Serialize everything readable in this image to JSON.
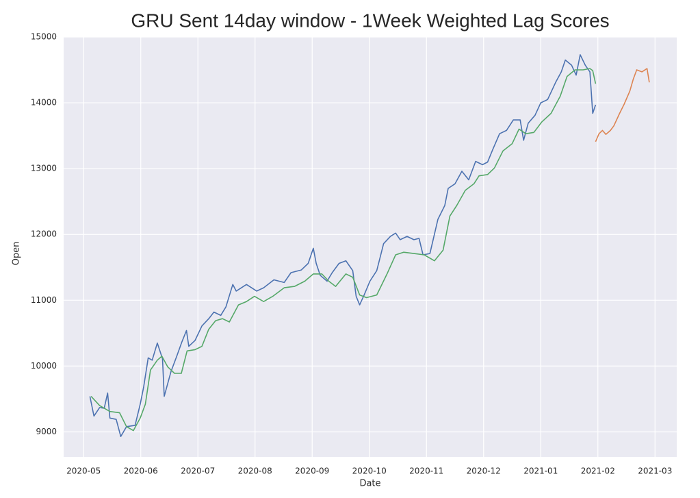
{
  "chart_data": {
    "type": "line",
    "title": "GRU Sent 14day window - 1Week Weighted Lag Scores",
    "x_label": "Date",
    "y_label": "Open",
    "xlim": [
      -0.35,
      10.38
    ],
    "xticks": [
      {
        "value": 0,
        "label": "2020-05"
      },
      {
        "value": 1,
        "label": "2020-06"
      },
      {
        "value": 2,
        "label": "2020-07"
      },
      {
        "value": 3,
        "label": "2020-08"
      },
      {
        "value": 4,
        "label": "2020-09"
      },
      {
        "value": 5,
        "label": "2020-10"
      },
      {
        "value": 6,
        "label": "2020-11"
      },
      {
        "value": 7,
        "label": "2020-12"
      },
      {
        "value": 8,
        "label": "2021-01"
      },
      {
        "value": 9,
        "label": "2021-02"
      },
      {
        "value": 10,
        "label": "2021-03"
      }
    ],
    "ylim": [
      8620,
      15000
    ],
    "yticks": [
      9000,
      10000,
      11000,
      12000,
      13000,
      14000,
      15000
    ],
    "grid": true,
    "series": [
      {
        "color": "#4c72b0",
        "x": [
          0.11,
          0.18,
          0.28,
          0.36,
          0.42,
          0.46,
          0.57,
          0.65,
          0.75,
          0.9,
          0.99,
          1.05,
          1.13,
          1.2,
          1.29,
          1.38,
          1.41,
          1.53,
          1.63,
          1.72,
          1.8,
          1.84,
          1.95,
          2.07,
          2.19,
          2.28,
          2.4,
          2.49,
          2.61,
          2.67,
          2.85,
          3.03,
          3.15,
          3.33,
          3.51,
          3.63,
          3.81,
          3.93,
          4.02,
          4.07,
          4.14,
          4.26,
          4.35,
          4.47,
          4.59,
          4.71,
          4.77,
          4.83,
          4.91,
          5.01,
          5.13,
          5.25,
          5.37,
          5.46,
          5.54,
          5.66,
          5.78,
          5.87,
          5.94,
          6.06,
          6.2,
          6.32,
          6.38,
          6.5,
          6.62,
          6.74,
          6.86,
          6.98,
          7.07,
          7.16,
          7.28,
          7.4,
          7.52,
          7.64,
          7.7,
          7.78,
          7.9,
          8.0,
          8.12,
          8.18,
          8.26,
          8.36,
          8.43,
          8.54,
          8.62,
          8.69,
          8.78,
          8.86,
          8.91,
          8.96
        ],
        "values": [
          9540,
          9240,
          9370,
          9360,
          9590,
          9210,
          9190,
          8930,
          9080,
          9100,
          9420,
          9680,
          10125,
          10090,
          10350,
          10110,
          9540,
          9920,
          10150,
          10370,
          10540,
          10300,
          10390,
          10610,
          10720,
          10820,
          10770,
          10900,
          11240,
          11140,
          11240,
          11140,
          11190,
          11310,
          11270,
          11420,
          11460,
          11560,
          11790,
          11560,
          11380,
          11290,
          11420,
          11560,
          11600,
          11450,
          11060,
          10930,
          11080,
          11290,
          11450,
          11860,
          11970,
          12020,
          11920,
          11970,
          11920,
          11940,
          11690,
          11710,
          12230,
          12440,
          12700,
          12770,
          12960,
          12830,
          13110,
          13060,
          13100,
          13290,
          13530,
          13580,
          13740,
          13740,
          13430,
          13690,
          13810,
          14000,
          14050,
          14160,
          14310,
          14470,
          14650,
          14570,
          14420,
          14730,
          14570,
          14470,
          13840,
          13970
        ]
      },
      {
        "color": "#55a868",
        "x": [
          0.13,
          0.28,
          0.46,
          0.63,
          0.75,
          0.87,
          0.99,
          1.08,
          1.17,
          1.29,
          1.37,
          1.47,
          1.59,
          1.71,
          1.81,
          1.95,
          2.07,
          2.19,
          2.31,
          2.43,
          2.55,
          2.71,
          2.85,
          2.99,
          3.15,
          3.31,
          3.51,
          3.69,
          3.87,
          4.02,
          4.17,
          4.29,
          4.41,
          4.59,
          4.71,
          4.83,
          4.95,
          5.13,
          5.31,
          5.46,
          5.6,
          5.78,
          5.96,
          6.14,
          6.29,
          6.41,
          6.53,
          6.68,
          6.83,
          6.92,
          7.07,
          7.19,
          7.34,
          7.5,
          7.62,
          7.74,
          7.88,
          8.02,
          8.18,
          8.34,
          8.46,
          8.6,
          8.74,
          8.86,
          8.91,
          8.96
        ],
        "values": [
          9540,
          9400,
          9310,
          9290,
          9080,
          9020,
          9210,
          9420,
          9940,
          10090,
          10150,
          9990,
          9890,
          9890,
          10230,
          10250,
          10300,
          10560,
          10690,
          10720,
          10670,
          10930,
          10980,
          11060,
          10980,
          11060,
          11190,
          11210,
          11290,
          11400,
          11400,
          11290,
          11210,
          11400,
          11350,
          11080,
          11040,
          11080,
          11400,
          11690,
          11730,
          11710,
          11690,
          11600,
          11760,
          12280,
          12440,
          12670,
          12770,
          12890,
          12910,
          13010,
          13270,
          13380,
          13600,
          13530,
          13550,
          13710,
          13840,
          14100,
          14400,
          14500,
          14500,
          14520,
          14490,
          14290
        ]
      },
      {
        "color": "#dd8452",
        "x": [
          8.96,
          9.02,
          9.08,
          9.14,
          9.22,
          9.28,
          9.38,
          9.46,
          9.56,
          9.62,
          9.68,
          9.77,
          9.86,
          9.9
        ],
        "values": [
          13410,
          13530,
          13580,
          13520,
          13580,
          13650,
          13840,
          13980,
          14180,
          14360,
          14500,
          14470,
          14520,
          14310
        ]
      }
    ]
  }
}
